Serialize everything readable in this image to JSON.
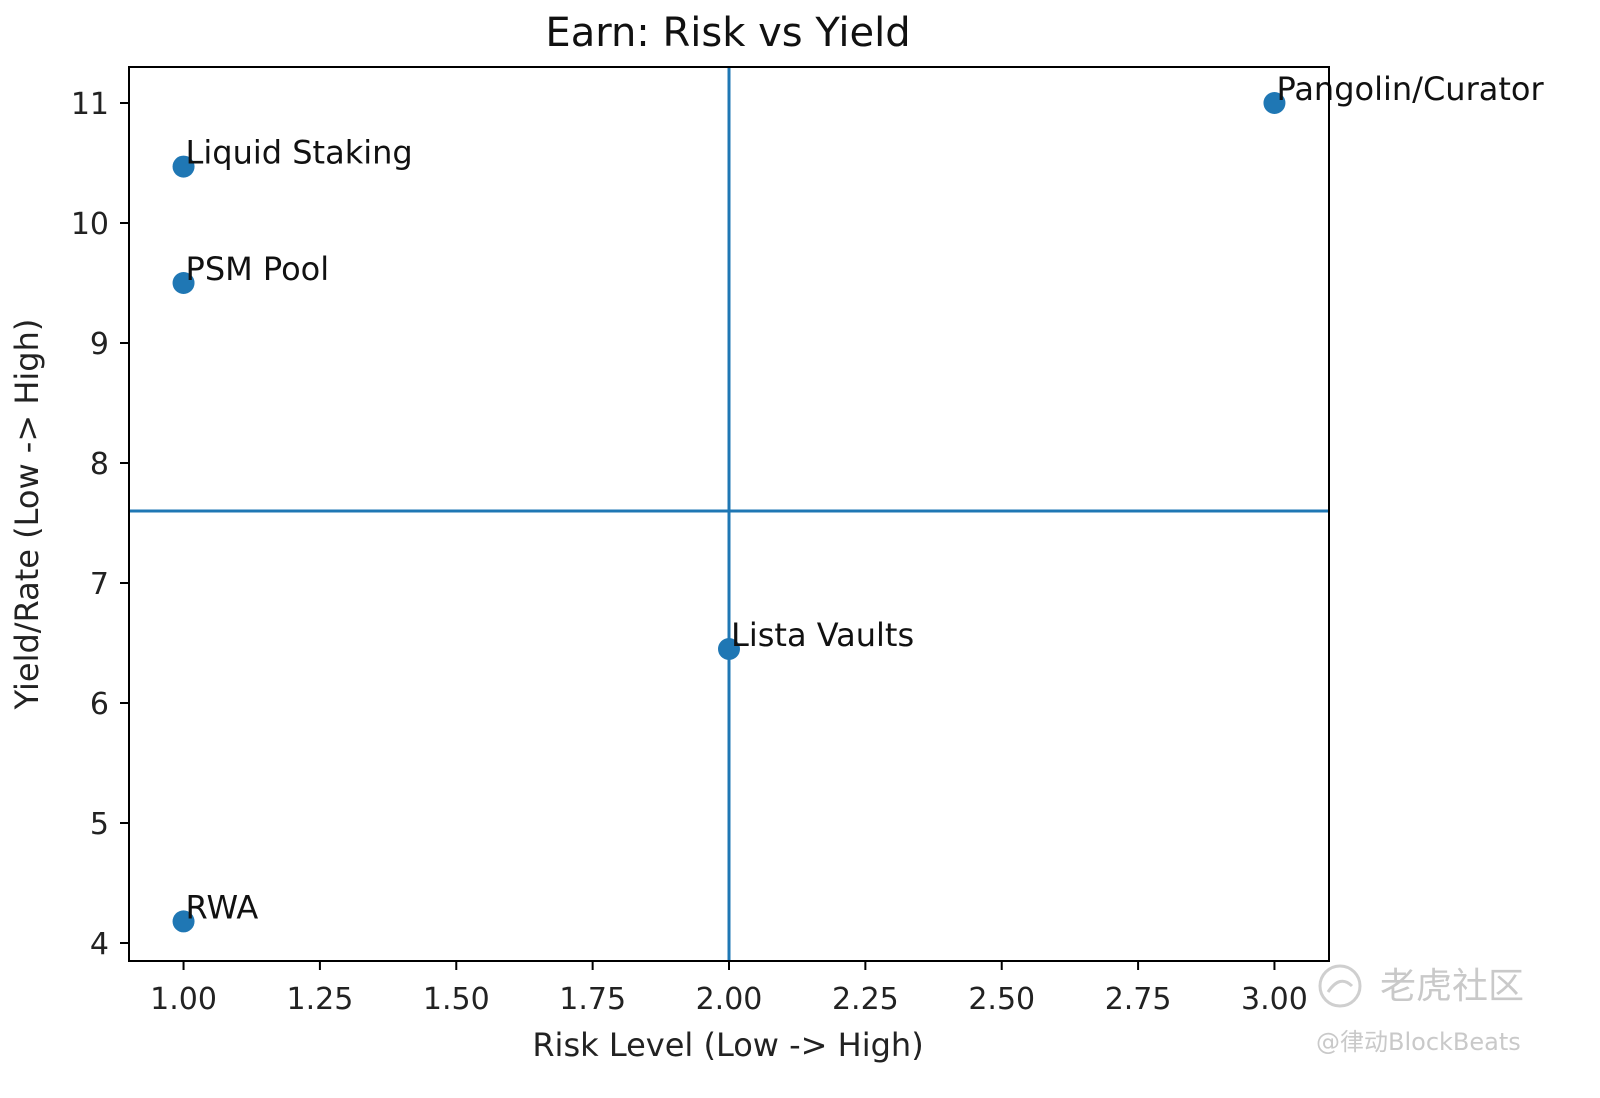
{
  "chart_data": {
    "type": "scatter",
    "title": "Earn: Risk vs Yield",
    "xlabel": "Risk Level (Low -> High)",
    "ylabel": "Yield/Rate (Low -> High)",
    "xlim": [
      0.9,
      3.1
    ],
    "ylim": [
      3.85,
      11.3
    ],
    "xticks": [
      1.0,
      1.25,
      1.5,
      1.75,
      2.0,
      2.25,
      2.5,
      2.75,
      3.0
    ],
    "xtick_labels": [
      "1.00",
      "1.25",
      "1.50",
      "1.75",
      "2.00",
      "2.25",
      "2.50",
      "2.75",
      "3.00"
    ],
    "yticks": [
      4,
      5,
      6,
      7,
      8,
      9,
      10,
      11
    ],
    "ytick_labels": [
      "4",
      "5",
      "6",
      "7",
      "8",
      "9",
      "10",
      "11"
    ],
    "grid": false,
    "points": [
      {
        "label": "Liquid Staking",
        "x": 1.0,
        "y": 10.47
      },
      {
        "label": "PSM Pool",
        "x": 1.0,
        "y": 9.5
      },
      {
        "label": "RWA",
        "x": 1.0,
        "y": 4.18
      },
      {
        "label": "Lista Vaults",
        "x": 2.0,
        "y": 6.45
      },
      {
        "label": "Pangolin/Curator",
        "x": 3.0,
        "y": 11.0
      }
    ],
    "reference_lines": {
      "vertical_x": 2.0,
      "horizontal_y": 7.6
    },
    "colors": {
      "points": "#1f77b4",
      "lines": "#1f77b4"
    }
  },
  "watermark": {
    "line1": "老虎社区",
    "line2": "@律动BlockBeats",
    "icon": "tiger-community-logo-icon"
  }
}
